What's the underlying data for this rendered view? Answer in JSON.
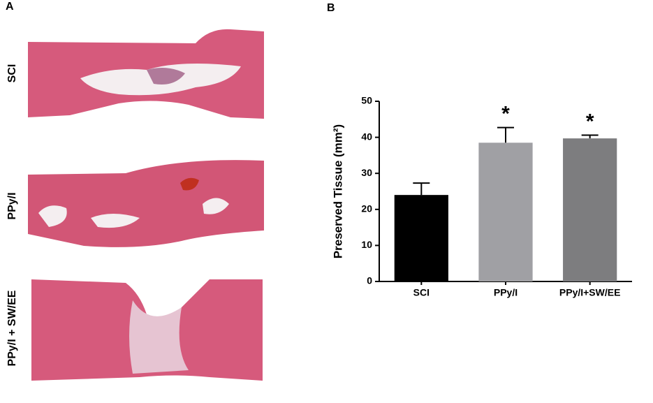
{
  "panel_a": {
    "label": "A",
    "images": [
      "SCI",
      "PPy/I",
      "PPy/I + SW/EE"
    ]
  },
  "panel_b_label": "B",
  "chart_data": {
    "type": "bar",
    "y_label": "Preserved Tissue (mm²)",
    "categories": [
      "SCI",
      "PPy/I",
      "PPy/I+SW/EE"
    ],
    "values": [
      24,
      38.5,
      39.7
    ],
    "errors": [
      3.3,
      4.2,
      0.9
    ],
    "colors": [
      "#000000",
      "#a0a0a4",
      "#7d7d7f"
    ],
    "significance": [
      null,
      "*",
      "*"
    ],
    "ylim": [
      0,
      50
    ],
    "yticks": [
      0,
      10,
      20,
      30,
      40,
      50
    ]
  }
}
